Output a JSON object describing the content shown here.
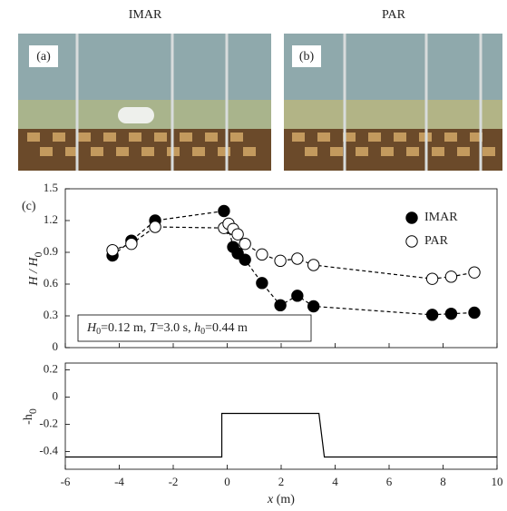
{
  "panel_titles": [
    "IMAR",
    "PAR"
  ],
  "photo_labels": [
    "(a)",
    "(b)"
  ],
  "chart_data": [
    {
      "type": "line",
      "panel_label": "(c)",
      "y_label": [
        "H / H",
        "0"
      ],
      "annotation": [
        "H",
        "0",
        "=0.12 m, ",
        "T",
        "=3.0 s, ",
        "h",
        "0",
        "=0.44 m"
      ],
      "x": [
        -4.25,
        -3.55,
        -2.67,
        -0.12,
        0.05,
        0.22,
        0.39,
        0.66,
        1.29,
        1.97,
        2.6,
        3.2,
        7.6,
        8.3,
        9.16
      ],
      "series": [
        {
          "name": "IMAR",
          "color": "#000000",
          "marker": "filled",
          "values": [
            0.87,
            1.01,
            1.2,
            1.29,
            1.13,
            0.95,
            0.89,
            0.83,
            0.61,
            0.4,
            0.49,
            0.39,
            0.31,
            0.32,
            0.33
          ]
        },
        {
          "name": "PAR",
          "color": "#000000",
          "marker": "open",
          "values": [
            0.92,
            0.98,
            1.14,
            1.13,
            1.17,
            1.12,
            1.07,
            0.98,
            0.88,
            0.82,
            0.84,
            0.78,
            0.65,
            0.67,
            0.71
          ]
        }
      ],
      "line_style": "dashed",
      "xlim": [
        -6,
        10
      ],
      "xticks": [
        -6,
        -4,
        -2,
        0,
        2,
        4,
        6,
        8,
        10
      ],
      "ylim": [
        0,
        1.5
      ],
      "yticks": [
        0,
        0.3,
        0.6,
        0.9,
        1.2,
        1.5
      ],
      "legend": "upper right"
    },
    {
      "type": "line",
      "y_label": [
        "-h",
        "0"
      ],
      "x_label": [
        "x",
        " (m)"
      ],
      "x": [
        -6,
        -0.2,
        -0.2,
        3.4,
        3.6,
        10
      ],
      "values": [
        -0.44,
        -0.44,
        -0.12,
        -0.12,
        -0.44,
        -0.44
      ],
      "color": "#000000",
      "xlim": [
        -6,
        10
      ],
      "xticks": [
        -6,
        -4,
        -2,
        0,
        2,
        4,
        6,
        8,
        10
      ],
      "ylim": [
        -0.53,
        0.25
      ],
      "yticks": [
        -0.4,
        -0.2,
        0,
        0.2
      ]
    }
  ]
}
